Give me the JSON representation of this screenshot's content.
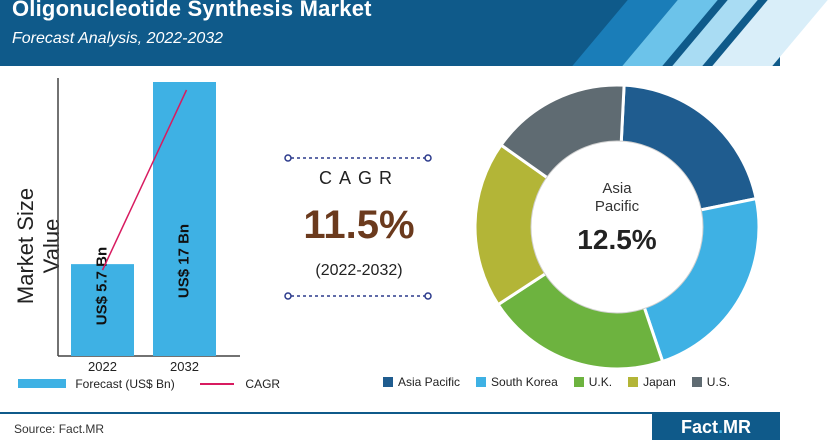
{
  "header": {
    "title": "Oligonucleotide Synthesis Market",
    "subtitle": "Forecast Analysis, 2022-2032"
  },
  "colors": {
    "header_bg": "#0f5a8a",
    "bar": "#3eb1e4",
    "cagr_line": "#d81b60",
    "cagr_value": "#6b3a1d"
  },
  "chart_data": [
    {
      "type": "bar",
      "ylabel": "Market Size Value",
      "categories": [
        "2022",
        "2032"
      ],
      "values": [
        5.7,
        17
      ],
      "data_labels": [
        "US$ 5.7 Bn",
        "US$ 17 Bn"
      ],
      "legend": [
        {
          "label": "Forecast (US$ Bn)",
          "type": "bar"
        },
        {
          "label": "CAGR",
          "type": "line"
        }
      ]
    },
    {
      "type": "pie",
      "donut": true,
      "center_label": "Asia Pacific",
      "center_value": "12.5%",
      "slices": [
        {
          "name": "Asia Pacific",
          "value": 21,
          "color": "#1f5c8f"
        },
        {
          "name": "South Korea",
          "value": 23,
          "color": "#3eb1e4"
        },
        {
          "name": "U.K.",
          "value": 21,
          "color": "#6db33f"
        },
        {
          "name": "Japan",
          "value": 19,
          "color": "#b3b537"
        },
        {
          "name": "U.S.",
          "value": 16,
          "color": "#5f6b72"
        }
      ]
    }
  ],
  "cagr": {
    "label": "CAGR",
    "value": "11.5%",
    "period": "(2022-2032)"
  },
  "footer": {
    "source": "Source: Fact.MR",
    "logo": "Fact.MR"
  }
}
